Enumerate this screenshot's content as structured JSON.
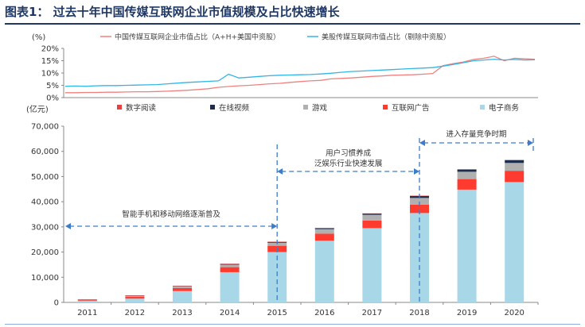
{
  "figure_title": "图表1：   过去十年中国传媒互联网企业市值规模及占比快速增长",
  "chart_data": [
    {
      "type": "line",
      "ylabel": "(%)",
      "ylim": [
        0,
        20
      ],
      "yticks": [
        "0%",
        "5%",
        "10%",
        "15%",
        "20%"
      ],
      "legend_position": "top",
      "series": [
        {
          "name": "中国传媒互联网企业市值占比（A+H+美国中资股）",
          "color": "#f08080",
          "values": [
            2.0,
            2.0,
            2.1,
            2.1,
            2.2,
            2.2,
            2.3,
            2.4,
            2.4,
            2.5,
            2.6,
            2.8,
            3.0,
            3.3,
            3.6,
            4.2,
            4.5,
            4.8,
            5.0,
            5.3,
            5.6,
            5.8,
            6.2,
            6.5,
            6.8,
            7.0,
            7.6,
            7.8,
            8.0,
            8.3,
            8.6,
            8.8,
            9.1,
            9.2,
            9.3,
            9.5,
            9.8,
            13.0,
            13.8,
            14.5,
            15.5,
            16.0,
            16.8,
            15.0,
            16.0,
            15.8,
            15.6
          ]
        },
        {
          "name": "美股传媒互联网市值占比（剔除中资股）",
          "color": "#33b5e5",
          "values": [
            4.6,
            4.7,
            4.6,
            4.8,
            4.9,
            4.9,
            5.0,
            5.1,
            5.2,
            5.3,
            5.6,
            5.9,
            6.2,
            6.4,
            6.6,
            6.8,
            9.5,
            8.0,
            8.3,
            8.6,
            8.9,
            9.1,
            9.2,
            9.3,
            9.4,
            9.6,
            9.9,
            10.3,
            10.6,
            10.8,
            11.0,
            11.2,
            11.4,
            11.6,
            11.8,
            12.0,
            12.2,
            12.8,
            13.5,
            14.2,
            15.0,
            15.3,
            15.6,
            15.3,
            15.5,
            15.3,
            15.4
          ]
        }
      ]
    },
    {
      "type": "bar",
      "stacked": true,
      "ylabel": "(亿元)",
      "ylim": [
        0,
        70000
      ],
      "yticks": [
        "0",
        "10,000",
        "20,000",
        "30,000",
        "40,000",
        "50,000",
        "60,000",
        "70,000"
      ],
      "categories": [
        "2011",
        "2012",
        "2013",
        "2014",
        "2015",
        "2016",
        "2017",
        "2018",
        "2019",
        "2020"
      ],
      "legend_position": "top",
      "series": [
        {
          "name": "电子商务",
          "color": "#a8d8e8",
          "values": [
            600,
            1500,
            4500,
            12000,
            20000,
            24500,
            29500,
            35500,
            44800,
            47800
          ]
        },
        {
          "name": "互联网广告",
          "color": "#ff3b30",
          "values": [
            300,
            700,
            1200,
            2000,
            2500,
            2800,
            3000,
            3300,
            4200,
            4500
          ]
        },
        {
          "name": "游戏",
          "color": "#b0b0b0",
          "values": [
            300,
            500,
            700,
            1000,
            1200,
            1800,
            2300,
            2700,
            2900,
            3100
          ]
        },
        {
          "name": "在线视频",
          "color": "#1f2d4d",
          "values": [
            50,
            100,
            200,
            300,
            350,
            400,
            500,
            800,
            900,
            1100
          ]
        },
        {
          "name": "数字阅读",
          "color": "#e84040",
          "values": [
            10,
            20,
            30,
            40,
            50,
            60,
            70,
            80,
            90,
            100
          ]
        }
      ],
      "annotations": [
        {
          "text": "智能手机和移动网络逐渐普及"
        },
        {
          "text_lines": [
            "用户习惯养成",
            "泛娱乐行业快速发展"
          ]
        },
        {
          "text": "进入存量竞争时期"
        }
      ]
    }
  ]
}
